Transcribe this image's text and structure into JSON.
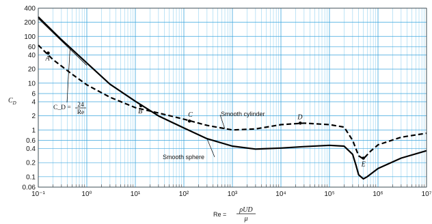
{
  "chart_data": {
    "type": "line",
    "xscale": "log",
    "yscale": "log",
    "xlim": [
      0.1,
      10000000
    ],
    "ylim": [
      0.06,
      400
    ],
    "grid": true,
    "xtick_labels": [
      "10⁻¹",
      "10⁰",
      "10¹",
      "10²",
      "10³",
      "10⁴",
      "10⁵",
      "10⁶",
      "10⁷"
    ],
    "xticks": [
      0.1,
      1,
      10,
      100,
      1000,
      10000,
      100000,
      1000000,
      10000000
    ],
    "ytick_labels": [
      "0.06",
      "0.1",
      "0.2",
      "0.4",
      "0.6",
      "1",
      "2",
      "4",
      "6",
      "10",
      "20",
      "40",
      "60",
      "100",
      "200",
      "400"
    ],
    "yticks": [
      0.06,
      0.1,
      0.2,
      0.4,
      0.6,
      1,
      2,
      4,
      6,
      10,
      20,
      40,
      60,
      100,
      200,
      400
    ],
    "ylabel": "C_D",
    "xlabel": {
      "prefix": "Re =",
      "numerator": "ρUD",
      "denominator": "μ"
    },
    "series": [
      {
        "name": "Smooth cylinder",
        "style": "dashed",
        "x": [
          0.1,
          0.2,
          0.5,
          1,
          3,
          10,
          30,
          100,
          300,
          1000,
          3000,
          10000,
          30000,
          100000,
          200000,
          300000,
          400000,
          500000,
          700000,
          1000000,
          3000000,
          10000000
        ],
        "y": [
          65,
          32,
          15.5,
          9.2,
          5,
          3,
          2.3,
          1.7,
          1.25,
          1.0,
          1.05,
          1.3,
          1.4,
          1.3,
          1.15,
          0.6,
          0.28,
          0.24,
          0.35,
          0.48,
          0.7,
          0.85
        ]
      },
      {
        "name": "Smooth sphere",
        "style": "solid",
        "x": [
          0.1,
          0.3,
          1,
          3,
          10,
          30,
          100,
          300,
          1000,
          3000,
          10000,
          30000,
          100000,
          200000,
          300000,
          350000,
          400000,
          500000,
          600000,
          1000000,
          3000000,
          10000000
        ],
        "y": [
          260,
          85,
          27,
          9.5,
          4.1,
          2.0,
          1.1,
          0.65,
          0.45,
          0.39,
          0.41,
          0.44,
          0.47,
          0.45,
          0.3,
          0.18,
          0.11,
          0.09,
          0.1,
          0.15,
          0.25,
          0.36
        ]
      }
    ],
    "reference_line": {
      "label_prefix": "C_D =",
      "numerator": "24",
      "denominator": "Re",
      "x": [
        0.1,
        1
      ],
      "y": [
        240,
        24
      ]
    },
    "points": [
      {
        "label": "A",
        "x": 0.16,
        "y": 44
      },
      {
        "label": "B",
        "x": 13,
        "y": 3.3
      },
      {
        "label": "C",
        "x": 130,
        "y": 1.55
      },
      {
        "label": "D",
        "x": 25000,
        "y": 1.4
      },
      {
        "label": "E",
        "x": 500000,
        "y": 0.25
      }
    ],
    "annotations": [
      {
        "text": "Smooth cylinder",
        "series": "Smooth cylinder"
      },
      {
        "text": "Smooth sphere",
        "series": "Smooth sphere"
      }
    ]
  }
}
